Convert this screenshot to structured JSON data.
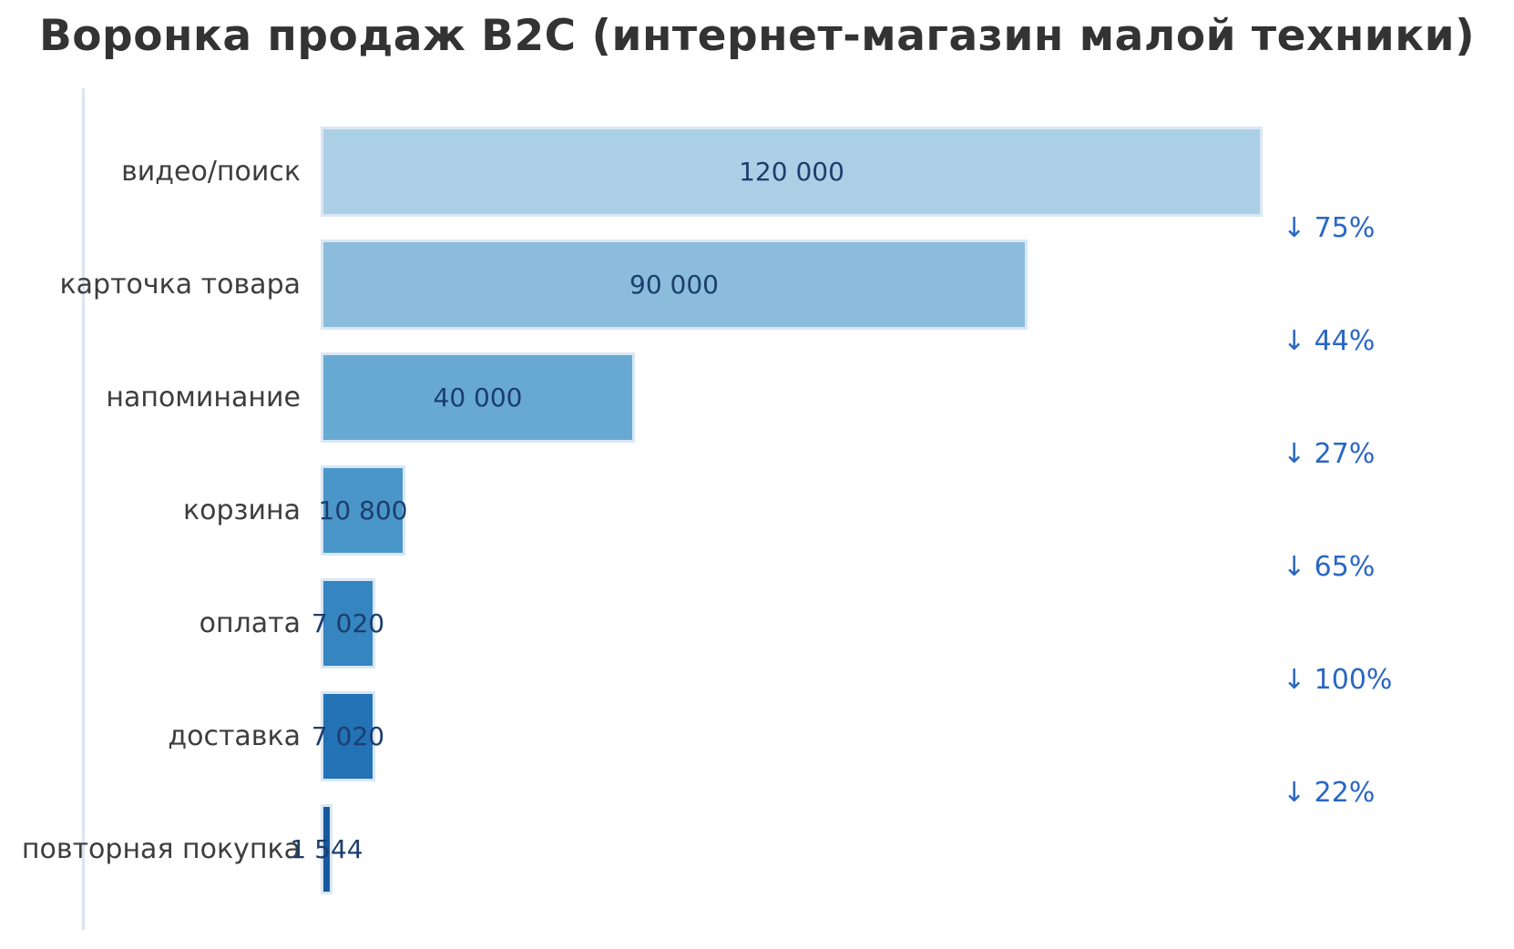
{
  "chart_data": {
    "type": "bar",
    "subtype": "horizontal-funnel",
    "title": "Воронка продаж B2C (интернет-магазин малой техники)",
    "categories": [
      "видео/поиск",
      "карточка товара",
      "напоминание",
      "корзина",
      "оплата",
      "доставка",
      "повторная покупка"
    ],
    "values": [
      120000,
      90000,
      40000,
      10800,
      7020,
      7020,
      1544
    ],
    "value_labels": [
      "120 000",
      "90 000",
      "40 000",
      "10 800",
      "7 020",
      "7 020",
      "1 544"
    ],
    "conversion_labels": [
      "↓ 75%",
      "↓ 44%",
      "↓ 27%",
      "↓ 65%",
      "↓ 100%",
      "↓ 22%"
    ],
    "conversion_values_pct": [
      75,
      44,
      27,
      65,
      100,
      22
    ],
    "xlim": [
      0,
      120000
    ],
    "grid": false,
    "legend": null,
    "xlabel": "",
    "ylabel": "",
    "bar_colors": [
      "#abd0e6",
      "#8bbcdc",
      "#68a9d3",
      "#4a96c9",
      "#3585c0",
      "#2272b5",
      "#17599e"
    ],
    "colors": {
      "title": "#333333",
      "category_label": "#3d3d3d",
      "value_label": "#1c3d6d",
      "conversion_label": "#2a66c5",
      "bar_edge": "#d9e7f5",
      "axis_spine": "#dbe4f0",
      "background": "#ffffff"
    }
  }
}
